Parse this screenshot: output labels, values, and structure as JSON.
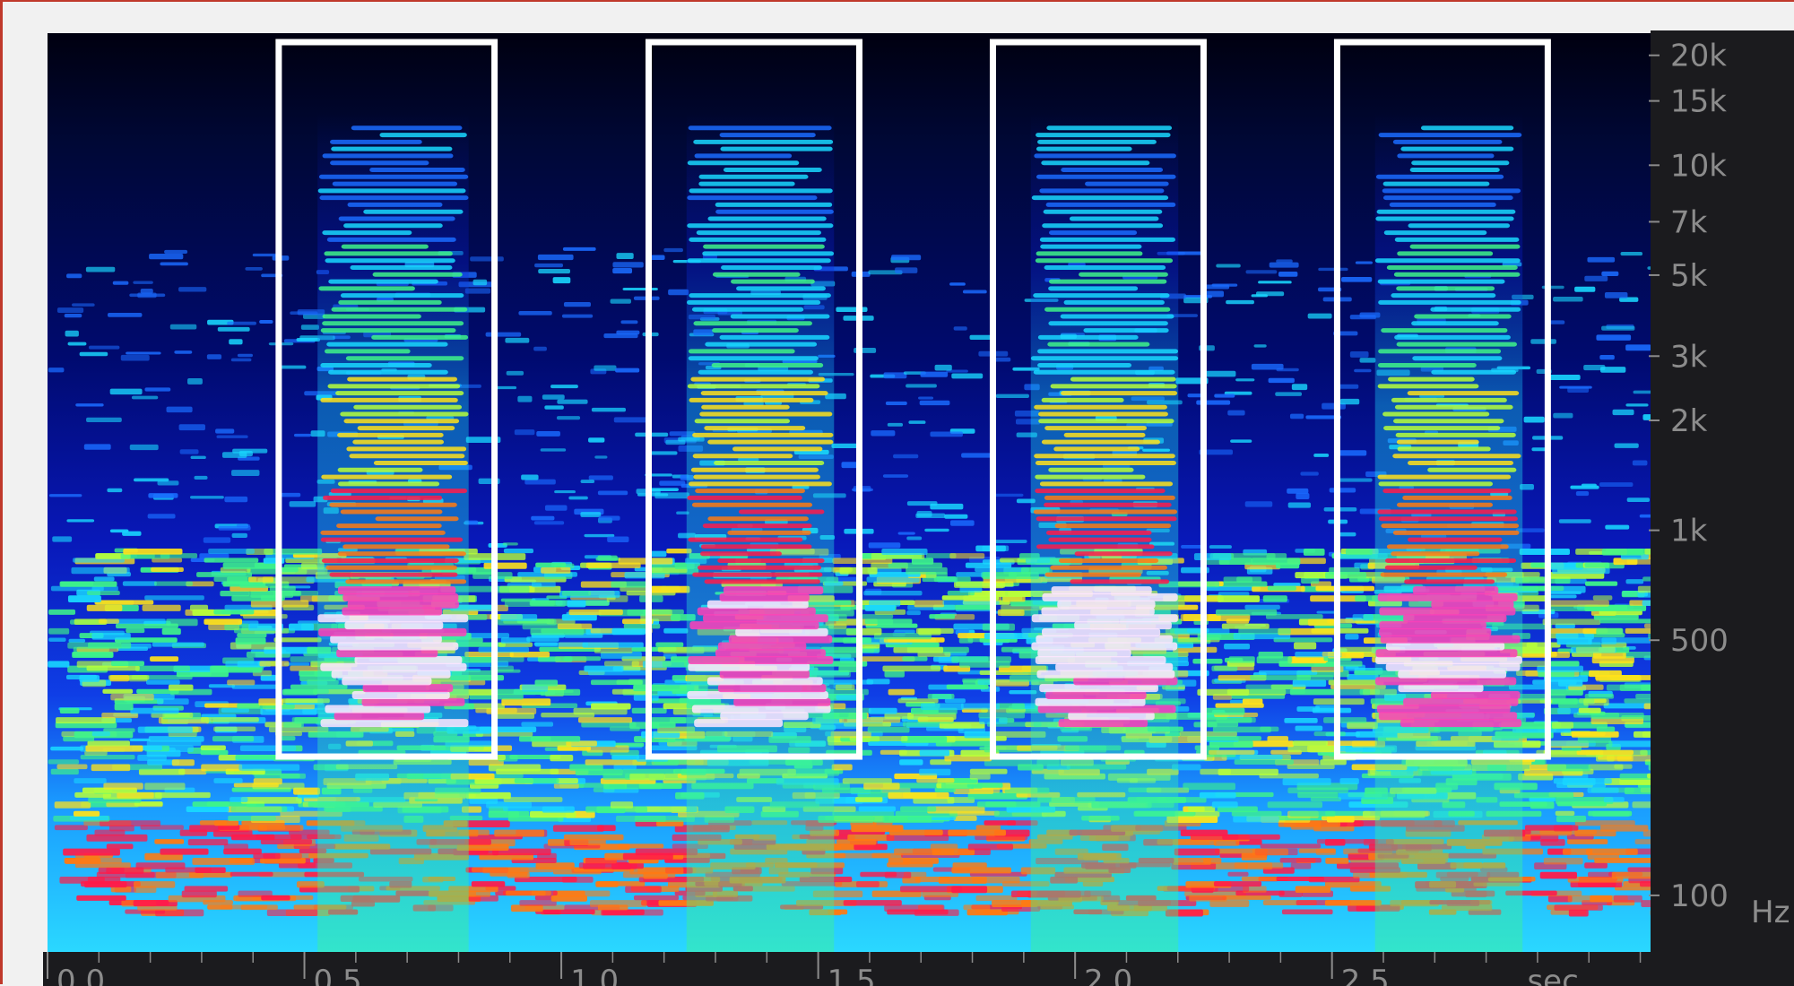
{
  "chart_data": {
    "type": "heatmap",
    "subtype": "spectrogram",
    "title": "",
    "xlabel": "sec",
    "ylabel": "Hz",
    "y_scale": "log",
    "ylim": [
      70,
      23000
    ],
    "xlim": [
      0,
      3.12
    ],
    "y_ticks": [
      {
        "value": 20000,
        "label": "20k"
      },
      {
        "value": 15000,
        "label": "15k"
      },
      {
        "value": 10000,
        "label": "10k"
      },
      {
        "value": 7000,
        "label": "7k"
      },
      {
        "value": 5000,
        "label": "5k"
      },
      {
        "value": 3000,
        "label": "3k"
      },
      {
        "value": 2000,
        "label": "2k"
      },
      {
        "value": 1000,
        "label": "1k"
      },
      {
        "value": 500,
        "label": "500"
      },
      {
        "value": 100,
        "label": "100"
      }
    ],
    "x_ticks": [
      {
        "value": 0.0,
        "label": "0.0"
      },
      {
        "value": 0.5,
        "label": "0.5"
      },
      {
        "value": 1.0,
        "label": "1.0"
      },
      {
        "value": 1.5,
        "label": "1.5"
      },
      {
        "value": 2.0,
        "label": "2.0"
      },
      {
        "value": 2.5,
        "label": "2.5"
      }
    ],
    "colormap": [
      "#000018",
      "#000a6e",
      "#0a1fd8",
      "#1a6bff",
      "#19d8ff",
      "#3ef58a",
      "#b7ff3a",
      "#ffe21a",
      "#ff7a12",
      "#ff1a4a",
      "#ff3fb8",
      "#ffe6ff"
    ],
    "highlight_boxes": [
      {
        "x_start": 0.45,
        "x_end": 0.87
      },
      {
        "x_start": 1.17,
        "x_end": 1.58
      },
      {
        "x_start": 1.84,
        "x_end": 2.25
      },
      {
        "x_start": 2.51,
        "x_end": 2.92
      }
    ],
    "highlight_box_color": "#ffffff",
    "background_color": "#000012",
    "axis_panel_color": "#1b1b1e"
  }
}
